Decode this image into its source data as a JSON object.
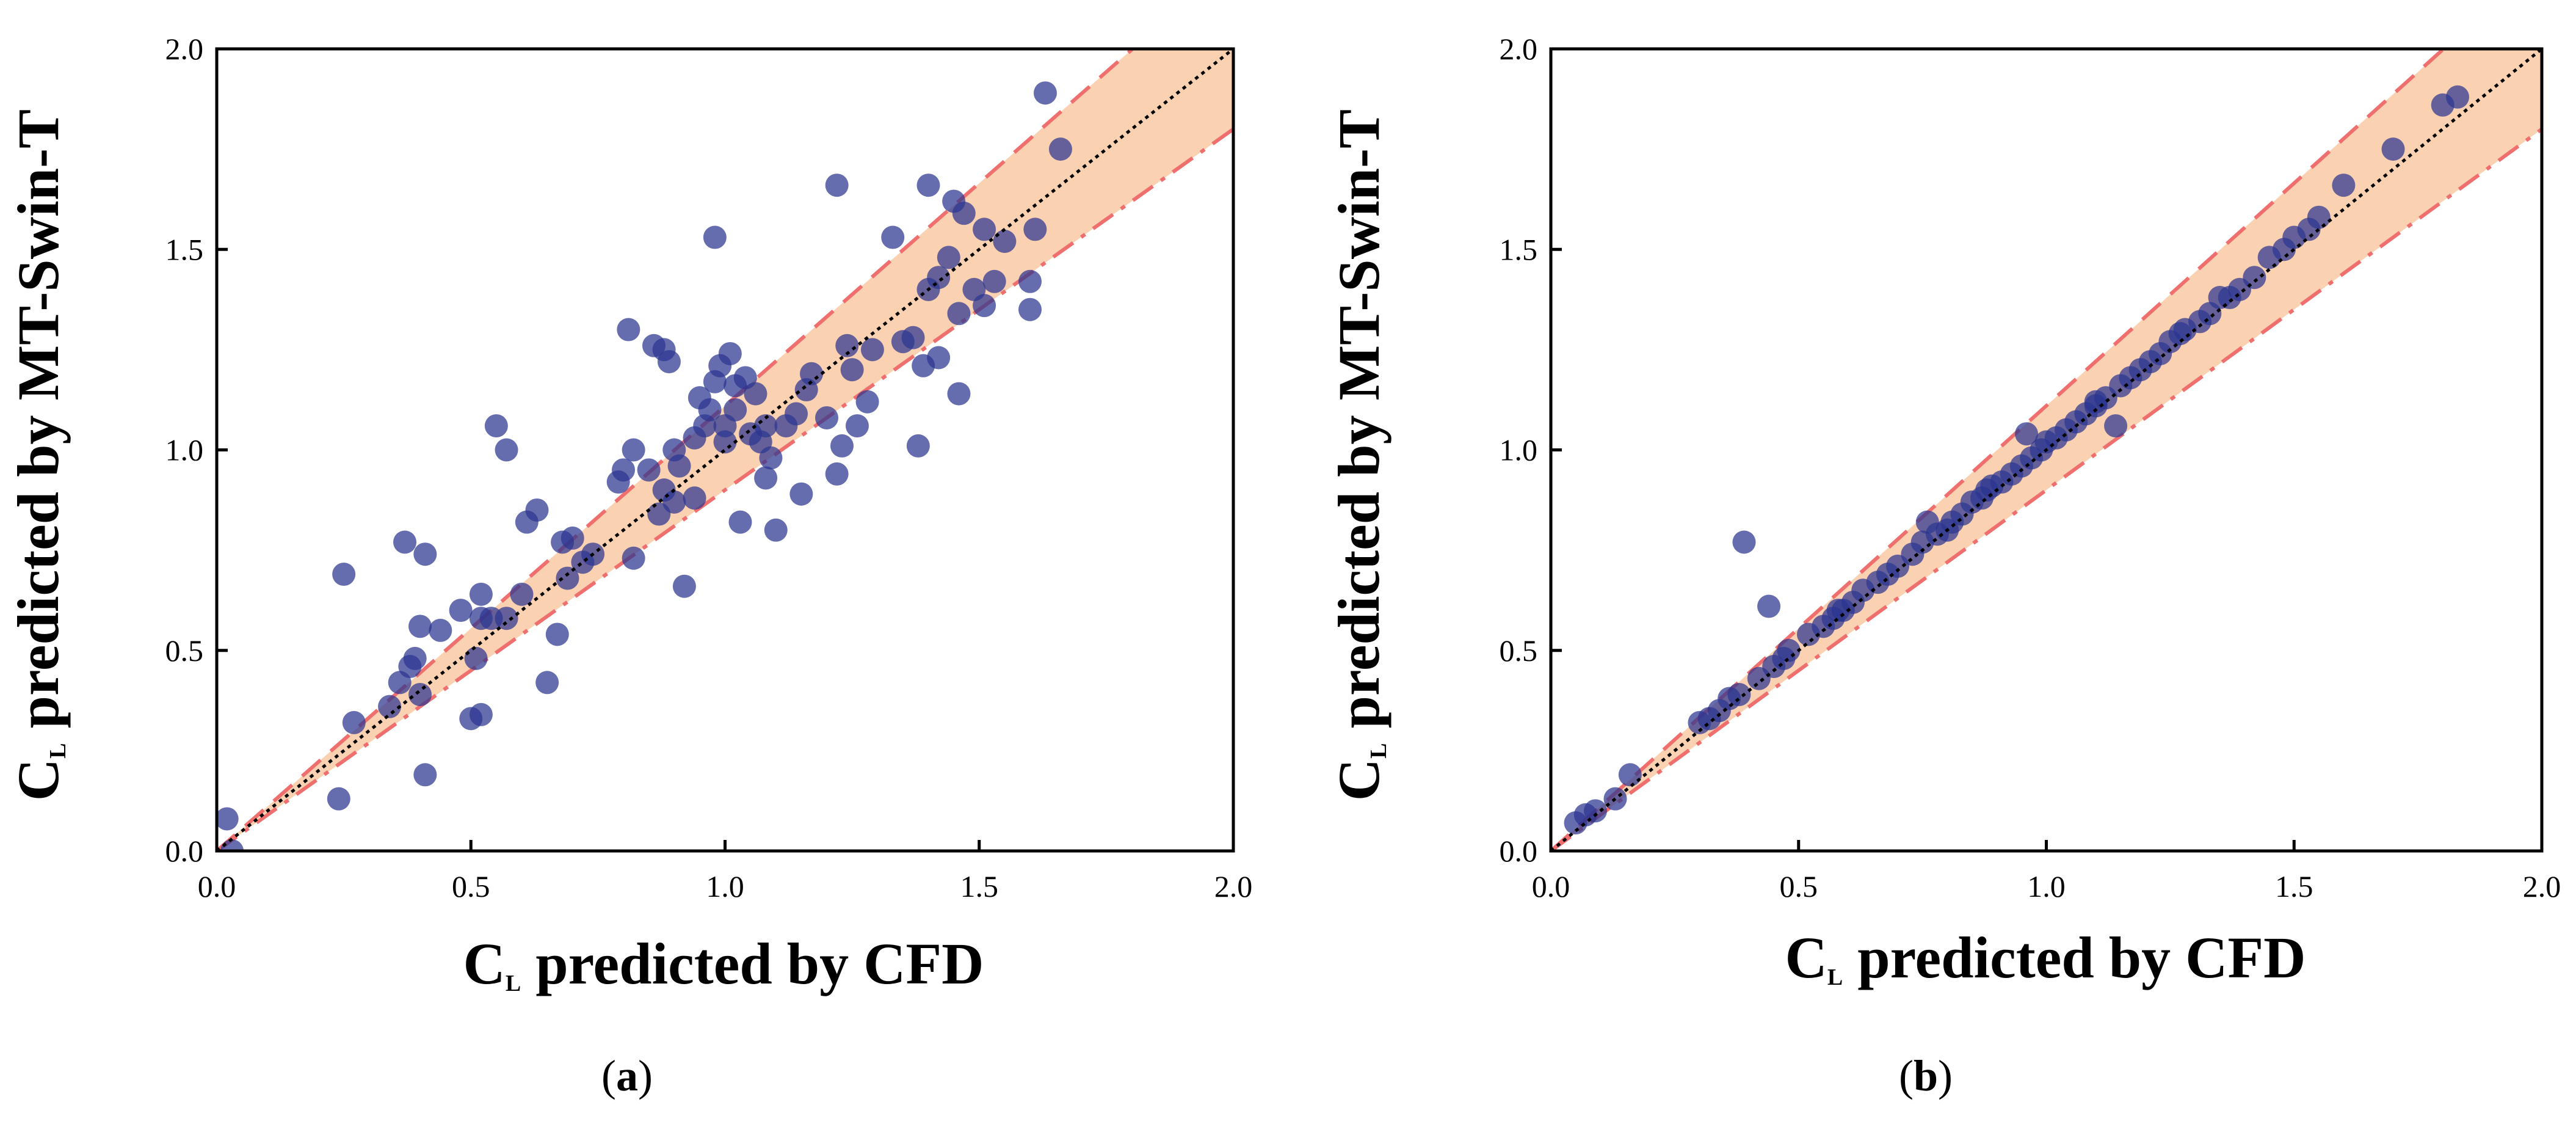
{
  "colors": {
    "point": "#2b3590",
    "band_fill": "#f9c9a3",
    "band_edge": "#ef6f6f",
    "diagonal": "#000000"
  },
  "chart_data": [
    {
      "type": "scatter",
      "panel_label": "a",
      "title": "",
      "xlabel_main": "C",
      "xlabel_sub": "L",
      "xlabel_rest": " predicted by CFD",
      "ylabel_main": "C",
      "ylabel_sub": "L",
      "ylabel_rest": " predicted by MT-Swin-T",
      "xlim": [
        0,
        2
      ],
      "ylim": [
        0,
        2
      ],
      "xticks": [
        "0.0",
        "0.5",
        "1.0",
        "1.5",
        "2.0"
      ],
      "yticks": [
        "0.0",
        "0.5",
        "1.0",
        "1.5",
        "2.0"
      ],
      "band_upper_slope": 1.11,
      "band_lower_slope": 0.9,
      "points": [
        [
          0.02,
          0.08
        ],
        [
          0.03,
          0.0
        ],
        [
          0.24,
          0.13
        ],
        [
          0.25,
          0.69
        ],
        [
          0.27,
          0.32
        ],
        [
          0.34,
          0.36
        ],
        [
          0.36,
          0.42
        ],
        [
          0.37,
          0.77
        ],
        [
          0.38,
          0.46
        ],
        [
          0.39,
          0.48
        ],
        [
          0.4,
          0.56
        ],
        [
          0.4,
          0.39
        ],
        [
          0.41,
          0.74
        ],
        [
          0.41,
          0.19
        ],
        [
          0.44,
          0.55
        ],
        [
          0.48,
          0.6
        ],
        [
          0.5,
          0.33
        ],
        [
          0.51,
          0.48
        ],
        [
          0.52,
          0.34
        ],
        [
          0.52,
          0.58
        ],
        [
          0.52,
          0.64
        ],
        [
          0.54,
          0.58
        ],
        [
          0.55,
          1.06
        ],
        [
          0.57,
          1.0
        ],
        [
          0.57,
          0.58
        ],
        [
          0.6,
          0.64
        ],
        [
          0.61,
          0.82
        ],
        [
          0.63,
          0.85
        ],
        [
          0.65,
          0.42
        ],
        [
          0.67,
          0.54
        ],
        [
          0.68,
          0.77
        ],
        [
          0.69,
          0.68
        ],
        [
          0.7,
          0.78
        ],
        [
          0.74,
          0.74
        ],
        [
          0.79,
          0.92
        ],
        [
          0.8,
          0.95
        ],
        [
          0.81,
          1.3
        ],
        [
          0.82,
          0.73
        ],
        [
          0.82,
          1.0
        ],
        [
          0.85,
          0.95
        ],
        [
          0.86,
          1.26
        ],
        [
          0.87,
          0.84
        ],
        [
          0.88,
          0.9
        ],
        [
          0.88,
          1.25
        ],
        [
          0.89,
          1.22
        ],
        [
          0.9,
          0.87
        ],
        [
          0.9,
          1.0
        ],
        [
          0.91,
          0.96
        ],
        [
          0.92,
          0.66
        ],
        [
          0.94,
          0.88
        ],
        [
          0.95,
          1.13
        ],
        [
          0.96,
          1.06
        ],
        [
          0.97,
          1.1
        ],
        [
          0.98,
          1.53
        ],
        [
          0.98,
          1.17
        ],
        [
          0.99,
          1.21
        ],
        [
          1.0,
          1.06
        ],
        [
          1.0,
          1.02
        ],
        [
          1.01,
          1.24
        ],
        [
          1.02,
          1.1
        ],
        [
          1.02,
          1.16
        ],
        [
          1.03,
          0.82
        ],
        [
          1.04,
          1.18
        ],
        [
          1.05,
          1.04
        ],
        [
          1.06,
          1.14
        ],
        [
          1.07,
          1.02
        ],
        [
          1.08,
          0.93
        ],
        [
          1.08,
          1.06
        ],
        [
          1.09,
          0.98
        ],
        [
          1.1,
          0.8
        ],
        [
          1.12,
          1.06
        ],
        [
          1.15,
          0.89
        ],
        [
          1.16,
          1.15
        ],
        [
          1.17,
          1.19
        ],
        [
          1.2,
          1.08
        ],
        [
          1.22,
          1.66
        ],
        [
          1.22,
          0.94
        ],
        [
          1.23,
          1.01
        ],
        [
          1.24,
          1.26
        ],
        [
          1.25,
          1.2
        ],
        [
          1.26,
          1.06
        ],
        [
          1.28,
          1.12
        ],
        [
          1.33,
          1.53
        ],
        [
          1.35,
          1.27
        ],
        [
          1.37,
          1.28
        ],
        [
          1.38,
          1.01
        ],
        [
          1.39,
          1.21
        ],
        [
          1.4,
          1.66
        ],
        [
          1.4,
          1.4
        ],
        [
          1.42,
          1.43
        ],
        [
          1.42,
          1.23
        ],
        [
          1.44,
          1.48
        ],
        [
          1.45,
          1.62
        ],
        [
          1.46,
          1.34
        ],
        [
          1.46,
          1.14
        ],
        [
          1.47,
          1.59
        ],
        [
          1.49,
          1.4
        ],
        [
          1.51,
          1.36
        ],
        [
          1.51,
          1.55
        ],
        [
          1.53,
          1.42
        ],
        [
          1.55,
          1.52
        ],
        [
          1.6,
          1.35
        ],
        [
          1.6,
          1.42
        ],
        [
          1.61,
          1.55
        ],
        [
          1.63,
          1.89
        ],
        [
          1.66,
          1.75
        ],
        [
          1.29,
          1.25
        ],
        [
          0.94,
          1.03
        ],
        [
          1.14,
          1.09
        ],
        [
          0.72,
          0.72
        ]
      ]
    },
    {
      "type": "scatter",
      "panel_label": "b",
      "title": "",
      "xlabel_main": "C",
      "xlabel_sub": "L",
      "xlabel_rest": " predicted by CFD",
      "ylabel_main": "C",
      "ylabel_sub": "L",
      "ylabel_rest": " predicted by MT-Swin-T",
      "xlim": [
        0,
        2
      ],
      "ylim": [
        0,
        2
      ],
      "xticks": [
        "0.0",
        "0.5",
        "1.0",
        "1.5",
        "2.0"
      ],
      "yticks": [
        "0.0",
        "0.5",
        "1.0",
        "1.5",
        "2.0"
      ],
      "band_upper_slope": 1.11,
      "band_lower_slope": 0.9,
      "points": [
        [
          0.05,
          0.07
        ],
        [
          0.07,
          0.09
        ],
        [
          0.09,
          0.1
        ],
        [
          0.13,
          0.13
        ],
        [
          0.16,
          0.19
        ],
        [
          0.3,
          0.32
        ],
        [
          0.32,
          0.33
        ],
        [
          0.34,
          0.35
        ],
        [
          0.36,
          0.38
        ],
        [
          0.38,
          0.39
        ],
        [
          0.39,
          0.77
        ],
        [
          0.42,
          0.43
        ],
        [
          0.44,
          0.61
        ],
        [
          0.45,
          0.46
        ],
        [
          0.47,
          0.48
        ],
        [
          0.52,
          0.54
        ],
        [
          0.55,
          0.56
        ],
        [
          0.57,
          0.58
        ],
        [
          0.59,
          0.6
        ],
        [
          0.61,
          0.62
        ],
        [
          0.63,
          0.65
        ],
        [
          0.66,
          0.67
        ],
        [
          0.68,
          0.69
        ],
        [
          0.7,
          0.71
        ],
        [
          0.73,
          0.74
        ],
        [
          0.75,
          0.77
        ],
        [
          0.76,
          0.82
        ],
        [
          0.78,
          0.79
        ],
        [
          0.81,
          0.82
        ],
        [
          0.83,
          0.84
        ],
        [
          0.85,
          0.87
        ],
        [
          0.87,
          0.88
        ],
        [
          0.89,
          0.91
        ],
        [
          0.91,
          0.92
        ],
        [
          0.93,
          0.94
        ],
        [
          0.95,
          0.96
        ],
        [
          0.96,
          1.04
        ],
        [
          0.97,
          0.98
        ],
        [
          0.99,
          1.0
        ],
        [
          1.0,
          1.02
        ],
        [
          1.02,
          1.03
        ],
        [
          1.04,
          1.05
        ],
        [
          1.06,
          1.07
        ],
        [
          1.08,
          1.09
        ],
        [
          1.1,
          1.11
        ],
        [
          1.12,
          1.13
        ],
        [
          1.14,
          1.06
        ],
        [
          1.15,
          1.16
        ],
        [
          1.17,
          1.18
        ],
        [
          1.19,
          1.2
        ],
        [
          1.21,
          1.22
        ],
        [
          1.23,
          1.24
        ],
        [
          1.25,
          1.27
        ],
        [
          1.28,
          1.3
        ],
        [
          1.31,
          1.32
        ],
        [
          1.33,
          1.34
        ],
        [
          1.35,
          1.38
        ],
        [
          1.37,
          1.38
        ],
        [
          1.39,
          1.4
        ],
        [
          1.42,
          1.43
        ],
        [
          1.45,
          1.48
        ],
        [
          1.48,
          1.5
        ],
        [
          1.5,
          1.53
        ],
        [
          1.53,
          1.55
        ],
        [
          1.55,
          1.58
        ],
        [
          1.6,
          1.66
        ],
        [
          1.7,
          1.75
        ],
        [
          1.8,
          1.86
        ],
        [
          1.83,
          1.88
        ],
        [
          0.58,
          0.6
        ],
        [
          0.8,
          0.8
        ],
        [
          1.1,
          1.12
        ],
        [
          1.27,
          1.29
        ],
        [
          0.48,
          0.5
        ],
        [
          0.88,
          0.9
        ]
      ]
    }
  ]
}
